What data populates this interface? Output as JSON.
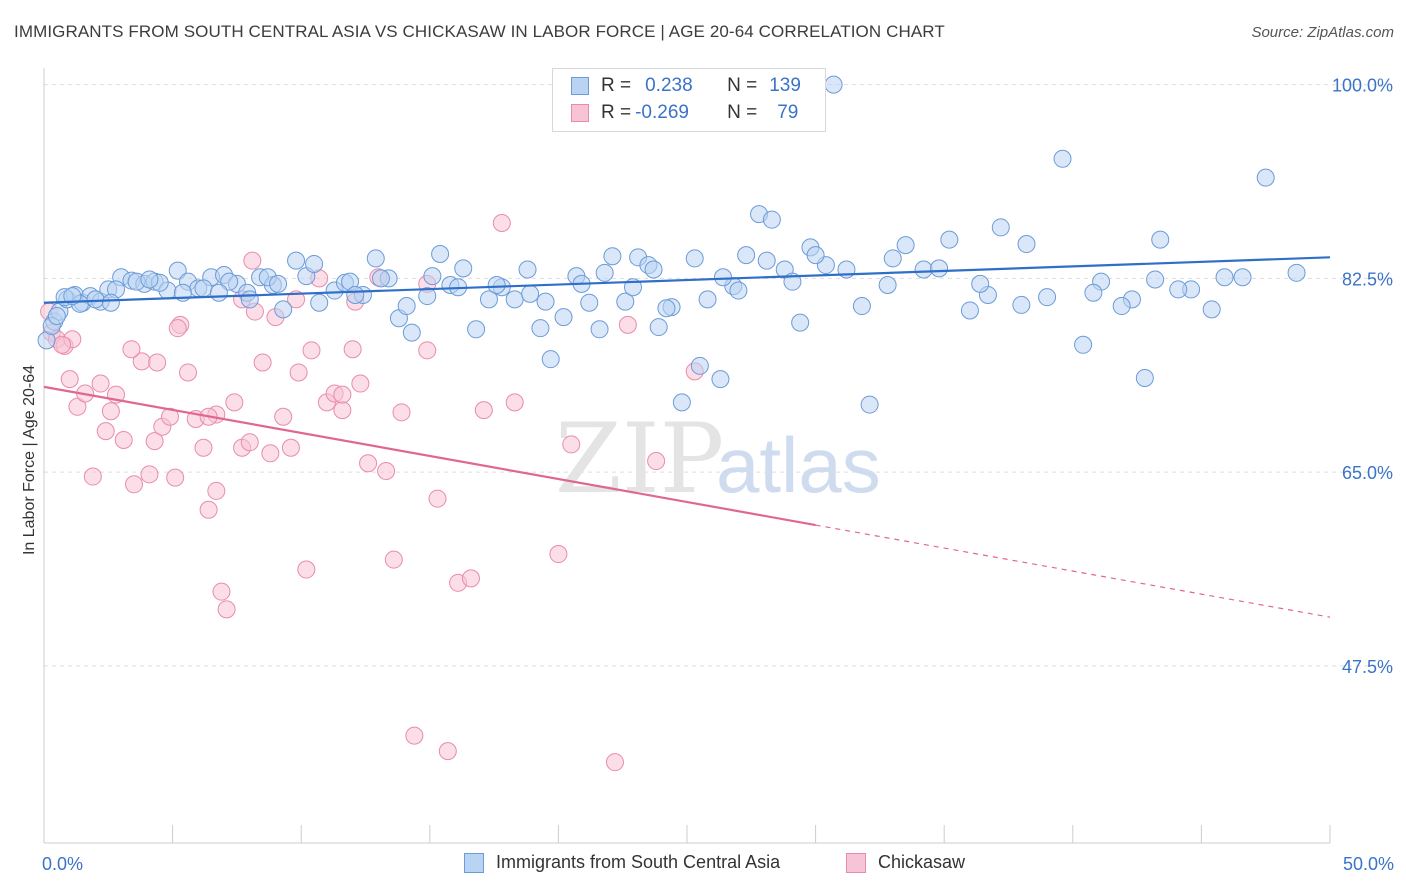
{
  "header": {
    "title": "IMMIGRANTS FROM SOUTH CENTRAL ASIA VS CHICKASAW IN LABOR FORCE | AGE 20-64 CORRELATION CHART",
    "source": "Source: ZipAtlas.com"
  },
  "watermark": {
    "zip": "ZIP",
    "atlas": "atlas"
  },
  "legend": {
    "rows": [
      {
        "r_label": "R =",
        "r_value": "0.238",
        "n_label": "N =",
        "n_value": "139"
      },
      {
        "r_label": "R =",
        "r_value": "-0.269",
        "n_label": "N =",
        "n_value": "79"
      }
    ]
  },
  "colors": {
    "blue_fill": "#b9d3f3",
    "blue_stroke": "#6c9bd8",
    "blue_line": "#2f6fc9",
    "pink_fill": "#f7c3d6",
    "pink_stroke": "#e88cac",
    "pink_line": "#e0688f",
    "tick_label": "#3b73c8",
    "grid": "#dddddd"
  },
  "chart_data": {
    "type": "scatter",
    "title": "IMMIGRANTS FROM SOUTH CENTRAL ASIA VS CHICKASAW IN LABOR FORCE | AGE 20-64 CORRELATION CHART",
    "xlabel": "",
    "ylabel": "In Labor Force | Age 20-64",
    "xlim": [
      0,
      50
    ],
    "ylim": [
      31.5,
      101.5
    ],
    "x_tick_labels": [
      {
        "value": 0,
        "label": "0.0%"
      },
      {
        "value": 50,
        "label": "50.0%"
      }
    ],
    "y_ticks": [
      {
        "value": 100,
        "label": "100.0%"
      },
      {
        "value": 82.5,
        "label": "82.5%"
      },
      {
        "value": 65,
        "label": "65.0%"
      },
      {
        "value": 47.5,
        "label": "47.5%"
      }
    ],
    "grid": true,
    "legend_placement": "top-center",
    "series": [
      {
        "name": "Immigrants from South Central Asia",
        "r": 0.238,
        "n": 139,
        "trend": {
          "x": [
            0,
            50
          ],
          "y": [
            80.3,
            84.4
          ],
          "solid_until": 50
        },
        "points": [
          [
            0.1,
            76.9
          ],
          [
            0.4,
            78.6
          ],
          [
            0.6,
            79.5
          ],
          [
            0.9,
            80.6
          ],
          [
            1.2,
            81.0
          ],
          [
            1.5,
            80.3
          ],
          [
            1.8,
            80.9
          ],
          [
            2.2,
            80.4
          ],
          [
            2.5,
            81.5
          ],
          [
            3.0,
            82.6
          ],
          [
            3.4,
            82.3
          ],
          [
            3.9,
            82.0
          ],
          [
            4.3,
            82.2
          ],
          [
            4.8,
            81.4
          ],
          [
            5.2,
            83.2
          ],
          [
            5.6,
            82.2
          ],
          [
            6.0,
            81.6
          ],
          [
            6.5,
            82.6
          ],
          [
            7.0,
            82.8
          ],
          [
            7.5,
            82.0
          ],
          [
            7.9,
            81.2
          ],
          [
            8.4,
            82.6
          ],
          [
            8.9,
            81.9
          ],
          [
            9.3,
            79.7
          ],
          [
            9.8,
            84.1
          ],
          [
            10.2,
            82.7
          ],
          [
            10.7,
            80.3
          ],
          [
            11.3,
            81.4
          ],
          [
            11.7,
            82.1
          ],
          [
            12.4,
            81.0
          ],
          [
            12.9,
            84.3
          ],
          [
            13.4,
            82.5
          ],
          [
            13.8,
            78.9
          ],
          [
            14.3,
            77.6
          ],
          [
            14.9,
            80.9
          ],
          [
            15.4,
            84.7
          ],
          [
            15.8,
            81.9
          ],
          [
            16.3,
            83.4
          ],
          [
            16.8,
            77.9
          ],
          [
            17.3,
            80.6
          ],
          [
            17.8,
            81.7
          ],
          [
            18.3,
            80.6
          ],
          [
            18.8,
            83.3
          ],
          [
            19.3,
            78.0
          ],
          [
            19.7,
            75.2
          ],
          [
            20.2,
            79.0
          ],
          [
            20.7,
            82.7
          ],
          [
            21.2,
            80.3
          ],
          [
            21.6,
            77.9
          ],
          [
            22.1,
            84.5
          ],
          [
            22.6,
            80.4
          ],
          [
            23.1,
            84.4
          ],
          [
            23.5,
            83.7
          ],
          [
            23.9,
            78.1
          ],
          [
            24.4,
            79.9
          ],
          [
            24.8,
            71.3
          ],
          [
            25.3,
            84.3
          ],
          [
            25.8,
            80.6
          ],
          [
            26.3,
            73.4
          ],
          [
            26.8,
            81.8
          ],
          [
            27.3,
            84.6
          ],
          [
            27.8,
            88.3
          ],
          [
            28.3,
            87.8
          ],
          [
            28.8,
            83.3
          ],
          [
            29.4,
            78.5
          ],
          [
            29.8,
            85.3
          ],
          [
            30.4,
            83.7
          ],
          [
            31.2,
            83.3
          ],
          [
            32.1,
            71.1
          ],
          [
            32.8,
            81.9
          ],
          [
            33.5,
            85.5
          ],
          [
            34.2,
            83.3
          ],
          [
            35.2,
            86.0
          ],
          [
            36.0,
            79.6
          ],
          [
            36.7,
            81.0
          ],
          [
            37.2,
            87.1
          ],
          [
            38.2,
            85.6
          ],
          [
            39.6,
            93.3
          ],
          [
            40.4,
            76.5
          ],
          [
            41.1,
            82.2
          ],
          [
            42.3,
            80.6
          ],
          [
            42.8,
            73.5
          ],
          [
            43.4,
            86.0
          ],
          [
            44.6,
            81.5
          ],
          [
            45.4,
            79.7
          ],
          [
            46.6,
            82.6
          ],
          [
            48.7,
            83.0
          ],
          [
            0.3,
            78.2
          ],
          [
            0.8,
            80.8
          ],
          [
            1.4,
            80.2
          ],
          [
            2.0,
            80.6
          ],
          [
            2.8,
            81.5
          ],
          [
            3.6,
            82.2
          ],
          [
            4.5,
            82.1
          ],
          [
            5.4,
            81.2
          ],
          [
            6.2,
            81.6
          ],
          [
            7.2,
            82.2
          ],
          [
            8.0,
            80.6
          ],
          [
            8.7,
            82.6
          ],
          [
            10.5,
            83.8
          ],
          [
            11.9,
            82.2
          ],
          [
            13.1,
            82.5
          ],
          [
            15.1,
            82.7
          ],
          [
            16.1,
            81.7
          ],
          [
            17.6,
            81.9
          ],
          [
            18.9,
            81.1
          ],
          [
            20.9,
            82.0
          ],
          [
            22.9,
            81.7
          ],
          [
            24.2,
            79.8
          ],
          [
            25.5,
            74.6
          ],
          [
            27.0,
            81.4
          ],
          [
            28.1,
            84.1
          ],
          [
            29.1,
            82.2
          ],
          [
            30.0,
            84.6
          ],
          [
            31.8,
            80.0
          ],
          [
            33.0,
            84.3
          ],
          [
            34.8,
            83.4
          ],
          [
            36.4,
            82.0
          ],
          [
            38.0,
            80.1
          ],
          [
            39.0,
            80.8
          ],
          [
            40.8,
            81.2
          ],
          [
            41.9,
            80.0
          ],
          [
            43.2,
            82.4
          ],
          [
            44.1,
            81.5
          ],
          [
            45.9,
            82.6
          ],
          [
            47.5,
            91.6
          ],
          [
            30.7,
            100.0
          ],
          [
            26.4,
            82.6
          ],
          [
            19.5,
            80.4
          ],
          [
            14.1,
            80.0
          ],
          [
            12.1,
            81.0
          ],
          [
            9.1,
            82.0
          ],
          [
            6.8,
            81.2
          ],
          [
            4.1,
            82.4
          ],
          [
            2.6,
            80.3
          ],
          [
            1.1,
            80.9
          ],
          [
            0.5,
            79.1
          ],
          [
            21.8,
            83.0
          ],
          [
            23.7,
            83.3
          ]
        ]
      },
      {
        "name": "Chickasaw",
        "r": -0.269,
        "n": 79,
        "trend": {
          "x": [
            0,
            50
          ],
          "y": [
            72.7,
            51.9
          ],
          "solid_until": 30
        },
        "points": [
          [
            0.2,
            79.5
          ],
          [
            0.3,
            77.6
          ],
          [
            0.5,
            77.0
          ],
          [
            0.8,
            76.4
          ],
          [
            1.0,
            73.4
          ],
          [
            1.3,
            70.9
          ],
          [
            1.6,
            72.1
          ],
          [
            1.9,
            64.6
          ],
          [
            2.2,
            73.0
          ],
          [
            2.6,
            70.5
          ],
          [
            2.8,
            72.0
          ],
          [
            3.1,
            67.9
          ],
          [
            3.5,
            63.9
          ],
          [
            3.8,
            75.0
          ],
          [
            4.1,
            64.8
          ],
          [
            4.3,
            67.8
          ],
          [
            4.6,
            69.1
          ],
          [
            4.9,
            70.0
          ],
          [
            5.1,
            64.5
          ],
          [
            5.3,
            78.3
          ],
          [
            5.6,
            74.0
          ],
          [
            5.9,
            69.8
          ],
          [
            6.2,
            67.2
          ],
          [
            6.4,
            61.6
          ],
          [
            6.7,
            70.2
          ],
          [
            6.9,
            54.2
          ],
          [
            7.1,
            52.6
          ],
          [
            7.4,
            71.3
          ],
          [
            7.7,
            67.2
          ],
          [
            8.0,
            67.7
          ],
          [
            8.2,
            79.5
          ],
          [
            8.5,
            74.9
          ],
          [
            8.8,
            66.7
          ],
          [
            9.0,
            79.0
          ],
          [
            9.3,
            70.0
          ],
          [
            9.6,
            67.2
          ],
          [
            9.9,
            74.0
          ],
          [
            10.2,
            56.2
          ],
          [
            10.4,
            76.0
          ],
          [
            10.7,
            82.5
          ],
          [
            11.0,
            71.3
          ],
          [
            11.3,
            72.1
          ],
          [
            11.6,
            70.6
          ],
          [
            12.0,
            76.1
          ],
          [
            12.3,
            73.0
          ],
          [
            12.6,
            65.8
          ],
          [
            13.0,
            82.6
          ],
          [
            13.3,
            65.1
          ],
          [
            13.6,
            57.1
          ],
          [
            13.9,
            70.4
          ],
          [
            14.4,
            41.2
          ],
          [
            14.9,
            76.0
          ],
          [
            15.3,
            62.6
          ],
          [
            15.7,
            39.8
          ],
          [
            16.1,
            55.0
          ],
          [
            16.6,
            55.4
          ],
          [
            17.1,
            70.6
          ],
          [
            17.8,
            87.5
          ],
          [
            18.3,
            71.3
          ],
          [
            20.0,
            57.6
          ],
          [
            20.5,
            67.5
          ],
          [
            22.2,
            38.8
          ],
          [
            22.7,
            78.3
          ],
          [
            23.8,
            66.0
          ],
          [
            25.3,
            74.1
          ],
          [
            5.2,
            78.0
          ],
          [
            9.8,
            80.6
          ],
          [
            3.4,
            76.1
          ],
          [
            6.4,
            70.0
          ],
          [
            2.4,
            68.7
          ],
          [
            1.1,
            77.0
          ],
          [
            7.7,
            80.6
          ],
          [
            4.4,
            74.9
          ],
          [
            11.6,
            72.0
          ],
          [
            8.1,
            84.1
          ],
          [
            12.1,
            80.4
          ],
          [
            14.9,
            82.0
          ],
          [
            0.7,
            76.5
          ],
          [
            6.7,
            63.3
          ]
        ]
      }
    ]
  },
  "bottom_legend": {
    "items": [
      {
        "label": "Immigrants from South Central Asia"
      },
      {
        "label": "Chickasaw"
      }
    ]
  }
}
